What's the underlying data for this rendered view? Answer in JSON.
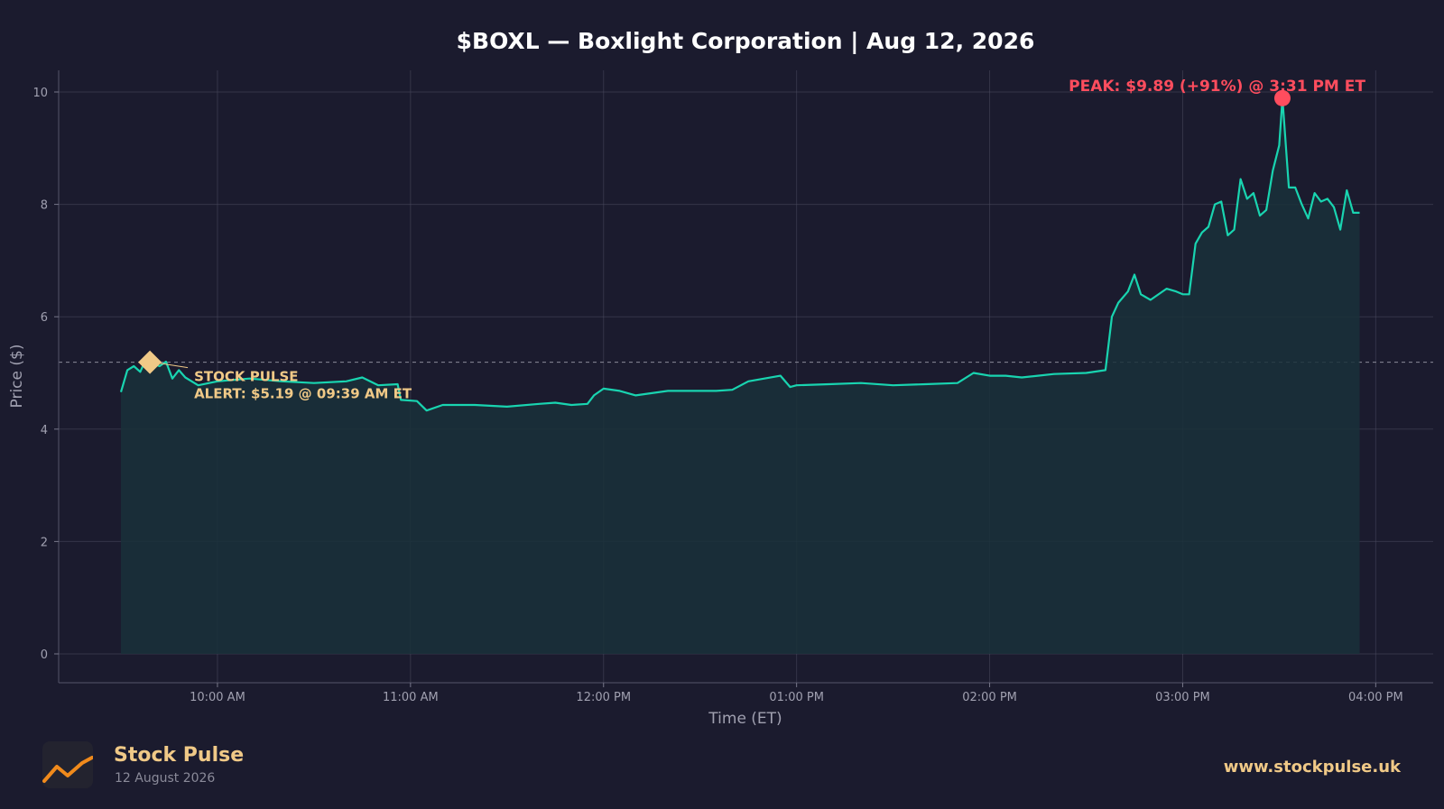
{
  "colors": {
    "background": "#1b1b2e",
    "line": "#19d4b0",
    "fill": "#19303a",
    "peak": "#ff4d5e",
    "alert": "#f0c987",
    "grid": "#4a4a5e",
    "text": "#ffffff",
    "tick_text": "#a0a0b0"
  },
  "chart_data": {
    "type": "area",
    "title": "$BOXL — Boxlight Corporation  |  Aug 12, 2026",
    "xlabel": "Time (ET)",
    "ylabel": "Price ($)",
    "ylim": [
      -0.5,
      10.4
    ],
    "grid": true,
    "x_ticks": [
      "10:00 AM",
      "11:00 AM",
      "12:00 PM",
      "01:00 PM",
      "02:00 PM",
      "03:00 PM",
      "04:00 PM"
    ],
    "y_ticks": [
      "0",
      "2",
      "4",
      "6",
      "8",
      "10"
    ],
    "reference_line_y": 5.19,
    "series": [
      {
        "points": [
          [
            "09:30",
            4.66
          ],
          [
            "09:32",
            5.05
          ],
          [
            "09:34",
            5.12
          ],
          [
            "09:36",
            5.02
          ],
          [
            "09:38",
            5.28
          ],
          [
            "09:39",
            5.19
          ],
          [
            "09:42",
            5.12
          ],
          [
            "09:44",
            5.2
          ],
          [
            "09:46",
            4.9
          ],
          [
            "09:48",
            5.05
          ],
          [
            "09:50",
            4.92
          ],
          [
            "09:54",
            4.78
          ],
          [
            "10:00",
            4.85
          ],
          [
            "10:10",
            4.9
          ],
          [
            "10:20",
            4.85
          ],
          [
            "10:30",
            4.82
          ],
          [
            "10:40",
            4.85
          ],
          [
            "10:45",
            4.92
          ],
          [
            "10:50",
            4.78
          ],
          [
            "10:56",
            4.8
          ],
          [
            "10:57",
            4.52
          ],
          [
            "11:02",
            4.5
          ],
          [
            "11:05",
            4.33
          ],
          [
            "11:10",
            4.43
          ],
          [
            "11:20",
            4.43
          ],
          [
            "11:30",
            4.4
          ],
          [
            "11:40",
            4.45
          ],
          [
            "11:45",
            4.47
          ],
          [
            "11:50",
            4.43
          ],
          [
            "11:55",
            4.45
          ],
          [
            "11:57",
            4.6
          ],
          [
            "12:00",
            4.72
          ],
          [
            "12:05",
            4.68
          ],
          [
            "12:10",
            4.6
          ],
          [
            "12:20",
            4.68
          ],
          [
            "12:30",
            4.68
          ],
          [
            "12:35",
            4.68
          ],
          [
            "12:40",
            4.7
          ],
          [
            "12:45",
            4.85
          ],
          [
            "12:50",
            4.9
          ],
          [
            "12:55",
            4.95
          ],
          [
            "12:58",
            4.75
          ],
          [
            "13:00",
            4.78
          ],
          [
            "13:10",
            4.8
          ],
          [
            "13:20",
            4.82
          ],
          [
            "13:30",
            4.78
          ],
          [
            "13:40",
            4.8
          ],
          [
            "13:50",
            4.82
          ],
          [
            "13:55",
            5.0
          ],
          [
            "14:00",
            4.95
          ],
          [
            "14:05",
            4.95
          ],
          [
            "14:10",
            4.92
          ],
          [
            "14:15",
            4.95
          ],
          [
            "14:20",
            4.98
          ],
          [
            "14:30",
            5.0
          ],
          [
            "14:36",
            5.05
          ],
          [
            "14:38",
            6.0
          ],
          [
            "14:40",
            6.25
          ],
          [
            "14:43",
            6.45
          ],
          [
            "14:45",
            6.75
          ],
          [
            "14:47",
            6.4
          ],
          [
            "14:50",
            6.3
          ],
          [
            "14:55",
            6.5
          ],
          [
            "14:58",
            6.45
          ],
          [
            "15:00",
            6.4
          ],
          [
            "15:02",
            6.4
          ],
          [
            "15:04",
            7.3
          ],
          [
            "15:06",
            7.5
          ],
          [
            "15:08",
            7.6
          ],
          [
            "15:10",
            8.0
          ],
          [
            "15:12",
            8.05
          ],
          [
            "15:14",
            7.45
          ],
          [
            "15:16",
            7.55
          ],
          [
            "15:18",
            8.45
          ],
          [
            "15:20",
            8.1
          ],
          [
            "15:22",
            8.2
          ],
          [
            "15:24",
            7.8
          ],
          [
            "15:26",
            7.9
          ],
          [
            "15:28",
            8.6
          ],
          [
            "15:30",
            9.05
          ],
          [
            "15:31",
            9.89
          ],
          [
            "15:33",
            8.3
          ],
          [
            "15:35",
            8.3
          ],
          [
            "15:37",
            8.0
          ],
          [
            "15:39",
            7.75
          ],
          [
            "15:41",
            8.2
          ],
          [
            "15:43",
            8.05
          ],
          [
            "15:45",
            8.1
          ],
          [
            "15:47",
            7.95
          ],
          [
            "15:49",
            7.55
          ],
          [
            "15:51",
            8.25
          ],
          [
            "15:53",
            7.85
          ],
          [
            "15:55",
            7.85
          ]
        ]
      }
    ],
    "peak": {
      "time": "15:31",
      "value": 9.89
    },
    "alert": {
      "time": "09:39",
      "value": 5.19
    },
    "annotations": {
      "peak_label": "PEAK: $9.89 (+91%) @ 3:31 PM ET",
      "alert_line1": "STOCK PULSE",
      "alert_line2": "ALERT: $5.19 @ 09:39 AM ET"
    }
  },
  "footer": {
    "logo_icon": "chart-trend-icon",
    "brand": "Stock Pulse",
    "date": "12 August 2026",
    "url": "www.stockpulse.uk"
  }
}
